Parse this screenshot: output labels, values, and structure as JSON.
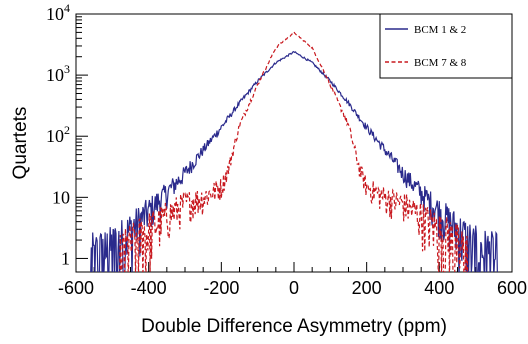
{
  "chart_data": {
    "type": "line",
    "title": "",
    "xlabel": "Double Difference Asymmetry (ppm)",
    "ylabel": "Quartets",
    "xlim": [
      -600,
      600
    ],
    "ylim": [
      0.6,
      10000
    ],
    "yscale": "log",
    "x_ticks": [
      -600,
      -400,
      -200,
      0,
      200,
      400,
      600
    ],
    "x_tick_labels": [
      "-600",
      "-400",
      "-200",
      "0",
      "200",
      "400",
      "600"
    ],
    "y_tick_labels": [
      {
        "value": 1,
        "base": "1",
        "exp": ""
      },
      {
        "value": 10,
        "base": "10",
        "exp": ""
      },
      {
        "value": 100,
        "base": "10",
        "exp": "2"
      },
      {
        "value": 1000,
        "base": "10",
        "exp": "3"
      },
      {
        "value": 10000,
        "base": "10",
        "exp": "4"
      }
    ],
    "grid": false,
    "legend_position": "top-right",
    "series": [
      {
        "name": "BCM 1 & 2",
        "color": "#2a2a8c",
        "style": "solid",
        "x": [
          -560,
          -500,
          -450,
          -400,
          -350,
          -300,
          -250,
          -200,
          -150,
          -100,
          -50,
          0,
          50,
          100,
          150,
          200,
          250,
          300,
          350,
          400,
          450,
          500,
          560
        ],
        "y": [
          1,
          1.5,
          3,
          6,
          12,
          25,
          60,
          140,
          350,
          800,
          1600,
          2400,
          1600,
          800,
          350,
          140,
          60,
          25,
          12,
          6,
          3,
          1.5,
          1
        ]
      },
      {
        "name": "BCM 7 & 8",
        "color": "#c8181e",
        "style": "dashed",
        "x": [
          -480,
          -440,
          -400,
          -350,
          -300,
          -250,
          -200,
          -180,
          -150,
          -100,
          -50,
          0,
          50,
          100,
          150,
          180,
          200,
          250,
          300,
          350,
          400,
          440,
          480
        ],
        "y": [
          1,
          2,
          3,
          5,
          8,
          10,
          15,
          30,
          150,
          700,
          2800,
          5000,
          2800,
          700,
          150,
          30,
          15,
          10,
          8,
          5,
          3,
          2,
          1
        ]
      }
    ]
  }
}
